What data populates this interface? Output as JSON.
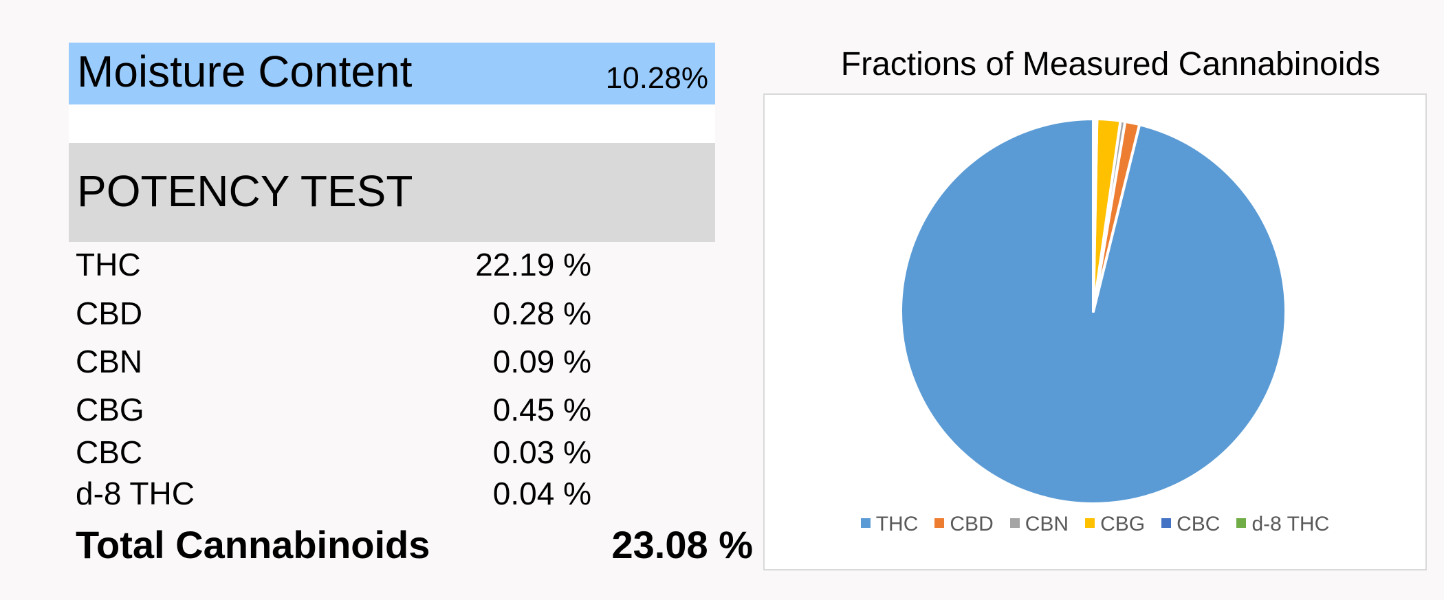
{
  "moisture": {
    "label": "Moisture Content",
    "value": "10.28%"
  },
  "potency": {
    "title": "POTENCY TEST",
    "rows": [
      {
        "name": "THC",
        "value": "22.19 %"
      },
      {
        "name": "CBD",
        "value": "0.28 %"
      },
      {
        "name": "CBN",
        "value": "0.09 %"
      },
      {
        "name": "CBG",
        "value": "0.45 %"
      },
      {
        "name": "CBC",
        "value": "0.03 %"
      },
      {
        "name": "d-8 THC",
        "value": "0.04 %"
      }
    ],
    "total": {
      "name": "Total Cannabinoids",
      "value": "23.08 %"
    }
  },
  "chart_data": {
    "type": "pie",
    "title": "Fractions of Measured Cannabinoids",
    "categories": [
      "THC",
      "CBD",
      "CBN",
      "CBG",
      "CBC",
      "d-8 THC"
    ],
    "values": [
      22.19,
      0.28,
      0.09,
      0.45,
      0.03,
      0.04
    ],
    "colors": [
      "#5b9bd5",
      "#ed7d31",
      "#a5a5a5",
      "#ffc000",
      "#4472c4",
      "#70ad47"
    ],
    "legend": "bottom"
  }
}
